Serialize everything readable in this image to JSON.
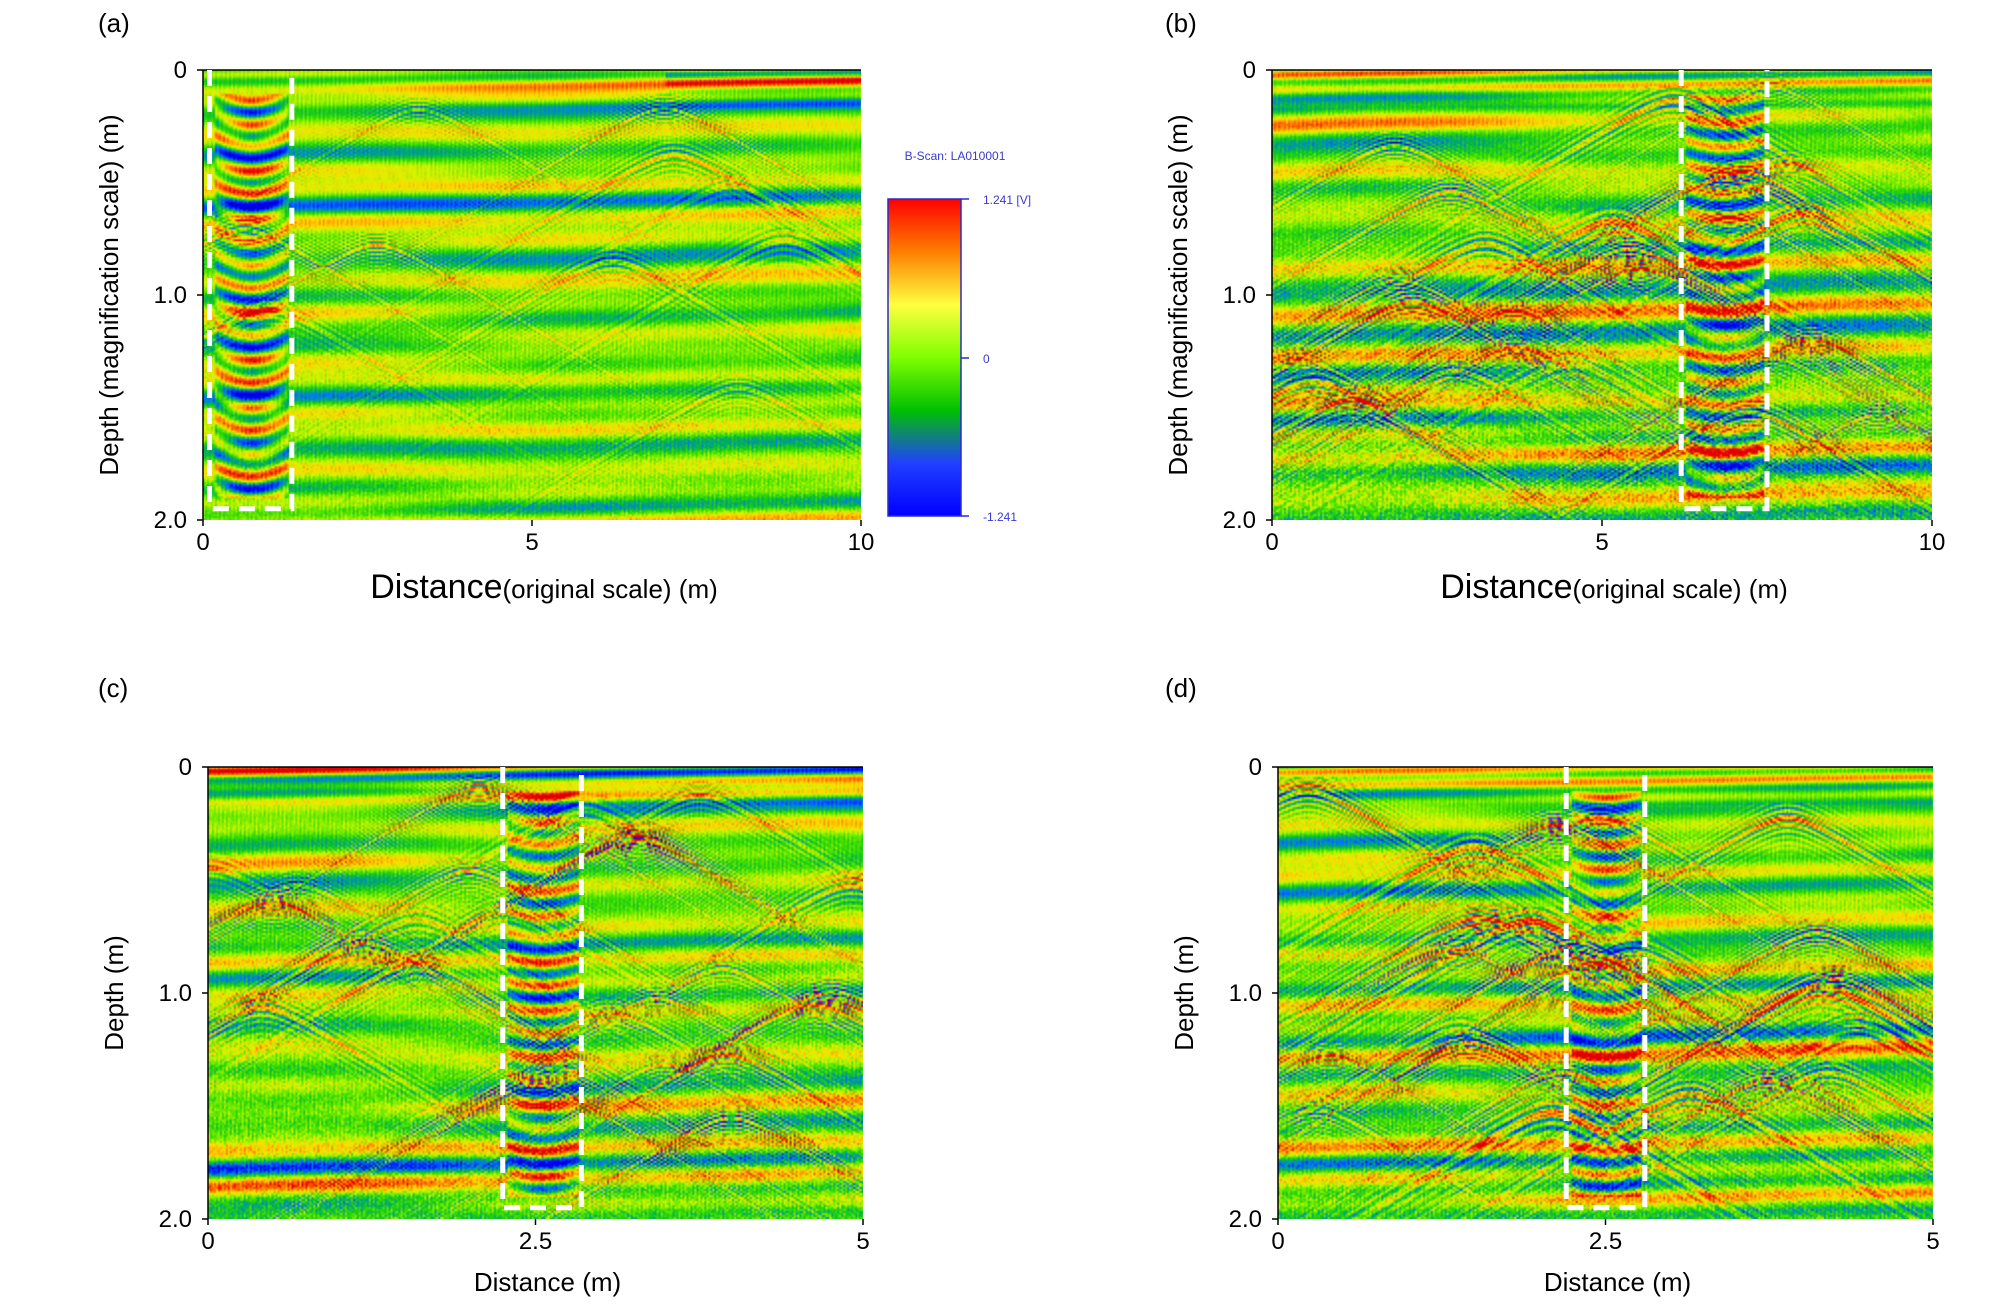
{
  "figure": {
    "colorbar": {
      "title": "B-Scan: LA010001",
      "max_label": "1.241 [V]",
      "mid_label": "0",
      "min_label": "-1.241",
      "colors": [
        "#ff0000",
        "#ff7f00",
        "#ffff40",
        "#7fff00",
        "#00c000",
        "#2040ff",
        "#0000ff"
      ]
    }
  },
  "chart_data": [
    {
      "panel_label": "(a)",
      "type": "heatmap",
      "xlabel_main": "Distance",
      "xlabel_sub": "(original scale) (m)",
      "ylabel": "Depth (magnification scale) (m)",
      "xlim": [
        0,
        10
      ],
      "ylim": [
        0,
        2.0
      ],
      "x_ticks": [
        0,
        5,
        10
      ],
      "x_tick_labels": [
        "0",
        "5",
        "10"
      ],
      "y_ticks": [
        0,
        1.0,
        2.0
      ],
      "y_tick_labels": [
        "0",
        "1.0",
        "2.0"
      ],
      "highlight_box": {
        "x": [
          0.1,
          1.35
        ],
        "depth": [
          0,
          1.95
        ]
      },
      "style": "a"
    },
    {
      "panel_label": "(b)",
      "type": "heatmap",
      "xlabel_main": "Distance",
      "xlabel_sub": "(original scale) (m)",
      "ylabel": "Depth (magnification scale) (m)",
      "xlim": [
        0,
        10
      ],
      "ylim": [
        0,
        2.0
      ],
      "x_ticks": [
        0,
        5,
        10
      ],
      "x_tick_labels": [
        "0",
        "5",
        "10"
      ],
      "y_ticks": [
        0,
        1.0,
        2.0
      ],
      "y_tick_labels": [
        "0",
        "1.0",
        "2.0"
      ],
      "highlight_box": {
        "x": [
          6.2,
          7.5
        ],
        "depth": [
          0,
          1.95
        ]
      },
      "style": "b"
    },
    {
      "panel_label": "(c)",
      "type": "heatmap",
      "xlabel_main": "Distance (m)",
      "xlabel_sub": "",
      "ylabel": "Depth (m)",
      "xlim": [
        0,
        5
      ],
      "ylim": [
        0,
        2.0
      ],
      "x_ticks": [
        0,
        2.5,
        5
      ],
      "x_tick_labels": [
        "0",
        "2.5",
        "5"
      ],
      "y_ticks": [
        0,
        1.0,
        2.0
      ],
      "y_tick_labels": [
        "0",
        "1.0",
        "2.0"
      ],
      "highlight_box": {
        "x": [
          2.25,
          2.85
        ],
        "depth": [
          0,
          1.95
        ]
      },
      "style": "c"
    },
    {
      "panel_label": "(d)",
      "type": "heatmap",
      "xlabel_main": "Distance (m)",
      "xlabel_sub": "",
      "ylabel": "Depth (m)",
      "xlim": [
        0,
        5
      ],
      "ylim": [
        0,
        2.0
      ],
      "x_ticks": [
        0,
        2.5,
        5
      ],
      "x_tick_labels": [
        "0",
        "2.5",
        "5"
      ],
      "y_ticks": [
        0,
        1.0,
        2.0
      ],
      "y_tick_labels": [
        "0",
        "1.0",
        "2.0"
      ],
      "highlight_box": {
        "x": [
          2.2,
          2.8
        ],
        "depth": [
          0,
          1.95
        ]
      },
      "style": "d"
    }
  ]
}
